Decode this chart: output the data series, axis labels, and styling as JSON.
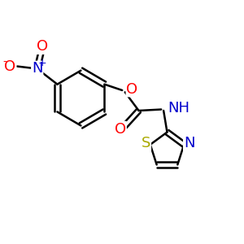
{
  "bg_color": "#ffffff",
  "bond_color": "#000000",
  "bond_width": 1.8,
  "dbo": 0.012,
  "atom_colors": {
    "N": "#0000cc",
    "O": "#ff0000",
    "S": "#aaaa00",
    "C": "#000000"
  },
  "font_size": 13,
  "font_size_small": 9
}
